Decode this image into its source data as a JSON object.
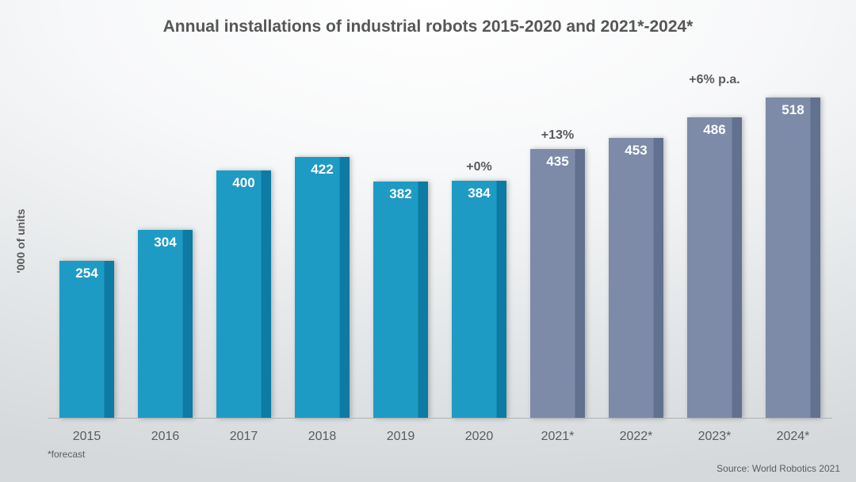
{
  "chart": {
    "type": "bar",
    "title": "Annual installations of industrial robots 2015-2020 and 2021*-2024*",
    "title_fontsize": 21,
    "title_color": "#565656",
    "ylabel": "'000 of units",
    "ylabel_fontsize": 14,
    "ylabel_color": "#5b5b5b",
    "footnote": "*forecast",
    "source": "Source: World Robotics 2021",
    "ymax": 560,
    "bar_width_ratio": 0.7,
    "value_label_color": "#ffffff",
    "value_label_fontsize": 17,
    "annotation_color": "#5b5b5b",
    "annotation_fontsize": 16,
    "xlabel_fontsize": 16,
    "xlabel_color": "#5b5b5b",
    "background_gradient": [
      "#ffffff",
      "#f7f8f9",
      "#e4e7e9",
      "#d6d9db"
    ],
    "baseline_color": "#aeb2b5",
    "colors": {
      "actual": "#1e9bc5",
      "actual_dark": "#0d7ba3",
      "forecast": "#7d8ba8",
      "forecast_dark": "#637190"
    },
    "bars": [
      {
        "label": "2015",
        "value": 254,
        "series": "actual",
        "annotation": ""
      },
      {
        "label": "2016",
        "value": 304,
        "series": "actual",
        "annotation": ""
      },
      {
        "label": "2017",
        "value": 400,
        "series": "actual",
        "annotation": ""
      },
      {
        "label": "2018",
        "value": 422,
        "series": "actual",
        "annotation": ""
      },
      {
        "label": "2019",
        "value": 382,
        "series": "actual",
        "annotation": ""
      },
      {
        "label": "2020",
        "value": 384,
        "series": "actual",
        "annotation": "+0%"
      },
      {
        "label": "2021*",
        "value": 435,
        "series": "forecast",
        "annotation": "+13%"
      },
      {
        "label": "2022*",
        "value": 453,
        "series": "forecast",
        "annotation": ""
      },
      {
        "label": "2023*",
        "value": 486,
        "series": "forecast",
        "annotation": "+6% p.a.",
        "annotation_offset": -30
      },
      {
        "label": "2024*",
        "value": 518,
        "series": "forecast",
        "annotation": ""
      }
    ]
  }
}
